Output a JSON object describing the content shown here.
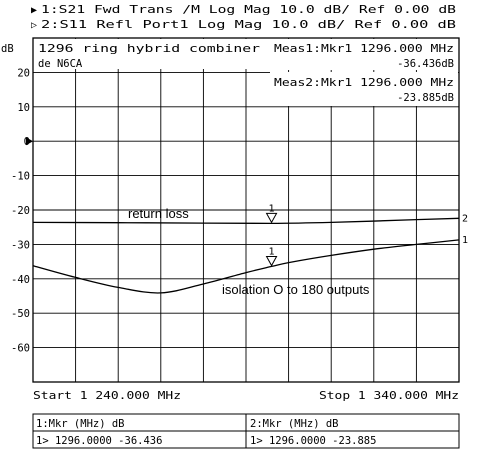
{
  "header": {
    "ch1_marker": "▶",
    "ch1_text": "1:S21 Fwd Trans /M Log Mag  10.0 dB/ Ref   0.00 dB",
    "ch2_marker": "▷",
    "ch2_text": "2:S11 Refl Port1  Log Mag  10.0 dB/ Ref   0.00 dB"
  },
  "note": {
    "line1": "1296 ring hybrid combiner",
    "line2": "de N6CA"
  },
  "meas1": {
    "label": "Meas1:Mkr1 1296.000 MHz",
    "value": "-36.436dB"
  },
  "meas2": {
    "label": "Meas2:Mkr1 1296.000 MHz",
    "value": "-23.885dB"
  },
  "footer": {
    "start": "Start 1 240.000 MHz",
    "stop": "Stop 1 340.000 MHz"
  },
  "marker_table": {
    "left_header": "1:Mkr (MHz)    dB",
    "left_row": "1> 1296.0000  -36.436",
    "right_header": "2:Mkr (MHz)    dB",
    "right_row": "1> 1296.0000  -23.885"
  },
  "chart_data": {
    "type": "line",
    "ylabel": "dB",
    "xlim": [
      1240,
      1340
    ],
    "ylim": [
      -70,
      30
    ],
    "y_ticks": [
      "20",
      "10",
      "0",
      "-10",
      "-20",
      "-30",
      "-40",
      "-50",
      "-60"
    ],
    "reference_level": 0,
    "grid": true,
    "series": [
      {
        "id": "1",
        "values_x": [
          1240,
          1250,
          1260,
          1270,
          1280,
          1290,
          1296,
          1300,
          1310,
          1320,
          1330,
          1340
        ],
        "values_y": [
          -36.2,
          -39.6,
          -42.5,
          -44.1,
          -41.5,
          -38.2,
          -36.4,
          -35.3,
          -33.2,
          -31.4,
          -30.0,
          -28.7
        ]
      },
      {
        "id": "2",
        "values_x": [
          1240,
          1260,
          1280,
          1296,
          1310,
          1330,
          1340
        ],
        "values_y": [
          -23.6,
          -23.7,
          -23.8,
          -23.9,
          -23.6,
          -22.8,
          -22.4
        ]
      }
    ],
    "markers": [
      {
        "series": "1",
        "label": "1",
        "x": 1296,
        "y": -36.436
      },
      {
        "series": "2",
        "label": "1",
        "x": 1296,
        "y": -23.885
      }
    ],
    "annotations": {
      "return_loss": "return loss",
      "isolation": "isolation O to 180 outputs"
    }
  }
}
